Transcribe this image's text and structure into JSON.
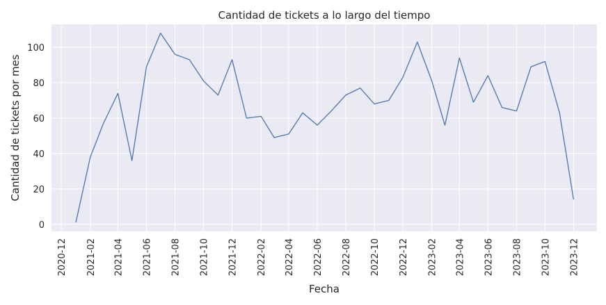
{
  "chart_data": {
    "type": "line",
    "title": "Cantidad de tickets a lo largo del tiempo",
    "xlabel": "Fecha",
    "ylabel": "Cantidad de tickets por mes",
    "x_tick_labels": [
      "2020-12",
      "2021-02",
      "2021-04",
      "2021-06",
      "2021-08",
      "2021-10",
      "2021-12",
      "2022-02",
      "2022-04",
      "2022-06",
      "2022-08",
      "2022-10",
      "2022-12",
      "2023-02",
      "2023-04",
      "2023-06",
      "2023-08",
      "2023-10",
      "2023-12"
    ],
    "y_ticks": [
      0,
      20,
      40,
      60,
      80,
      100
    ],
    "ylim": [
      -4,
      113
    ],
    "xlim": [
      "2020-11-10",
      "2024-01-20"
    ],
    "grid": true,
    "line_color": "#4c72b0",
    "background_color": "#eaeaf2",
    "series": [
      {
        "x": [
          "2021-01",
          "2021-02",
          "2021-03",
          "2021-04",
          "2021-05",
          "2021-06",
          "2021-07",
          "2021-08",
          "2021-09",
          "2021-10",
          "2021-11",
          "2021-12",
          "2022-01",
          "2022-02",
          "2022-03",
          "2022-04",
          "2022-05",
          "2022-06",
          "2022-07",
          "2022-08",
          "2022-09",
          "2022-10",
          "2022-11",
          "2022-12",
          "2023-01",
          "2023-02",
          "2023-03",
          "2023-04",
          "2023-05",
          "2023-06",
          "2023-07",
          "2023-08",
          "2023-09",
          "2023-10",
          "2023-11",
          "2023-12"
        ],
        "values": [
          1,
          38,
          57,
          74,
          36,
          89,
          108,
          96,
          93,
          81,
          73,
          93,
          60,
          61,
          49,
          51,
          63,
          56,
          64,
          73,
          77,
          68,
          70,
          83,
          103,
          81,
          56,
          94,
          69,
          84,
          66,
          64,
          89,
          92,
          63,
          14
        ]
      }
    ]
  }
}
